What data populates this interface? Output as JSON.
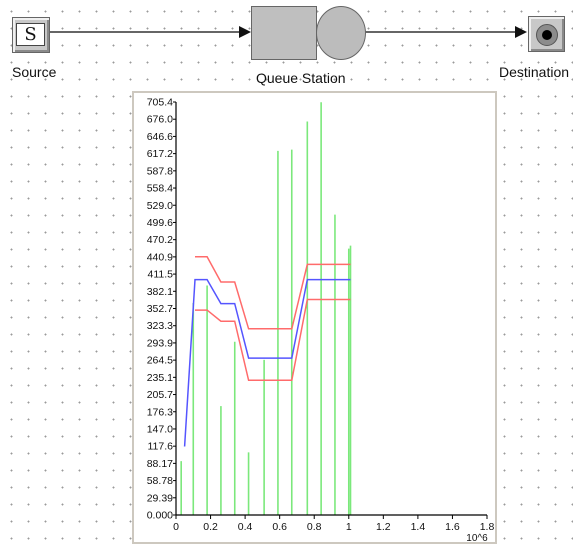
{
  "nodes": {
    "source": {
      "label": "Source",
      "glyph": "S"
    },
    "queue": {
      "label": "Queue Station"
    },
    "destination": {
      "label": "Destination"
    }
  },
  "colors": {
    "background": "#ffffff",
    "grid_dots": "#9a9a9a",
    "histogram": "#7be87b",
    "mean": "#5555ff",
    "confidence": "#ff6b6b",
    "axis": "#000000",
    "panel_border": "#cdc8bf"
  },
  "chart_data": {
    "type": "bar",
    "title": "",
    "xlabel": "",
    "ylabel": "",
    "x_multiplier_label": "10^6",
    "xlim": [
      0,
      1.8
    ],
    "ylim": [
      0,
      705.4
    ],
    "x_ticks": [
      "0",
      "0.2",
      "0.4",
      "0.6",
      "0.8",
      "1",
      "1.2",
      "1.4",
      "1.6",
      "1.8"
    ],
    "y_ticks": [
      "0.000",
      "29.39",
      "58.78",
      "88.17",
      "117.6",
      "147.0",
      "176.3",
      "205.7",
      "235.1",
      "264.5",
      "293.9",
      "323.3",
      "352.7",
      "382.1",
      "411.5",
      "440.9",
      "470.2",
      "499.6",
      "529.0",
      "558.4",
      "587.8",
      "617.2",
      "646.6",
      "676.0",
      "705.4"
    ],
    "grid": false,
    "bars": {
      "name": "",
      "x": [
        0.03,
        0.1,
        0.18,
        0.26,
        0.34,
        0.42,
        0.51,
        0.59,
        0.67,
        0.76,
        0.84,
        0.92,
        1.0,
        1.01
      ],
      "values": [
        92,
        362,
        392,
        186,
        296,
        107,
        265,
        622,
        624,
        672,
        705,
        513,
        455,
        460
      ]
    },
    "series": [
      {
        "name": "",
        "x": [
          0.05,
          0.11,
          0.18,
          0.26,
          0.34,
          0.42,
          0.51,
          0.59,
          0.67,
          0.76,
          0.84,
          0.92,
          1.01
        ],
        "values": [
          117,
          402,
          402,
          361,
          361,
          268,
          268,
          268,
          268,
          402,
          402,
          402,
          402
        ]
      },
      {
        "name": "",
        "x": [
          0.11,
          0.18,
          0.26,
          0.34,
          0.42,
          0.51,
          0.59,
          0.67,
          0.76,
          0.84,
          0.92,
          1.01
        ],
        "values": [
          441,
          441,
          398,
          398,
          318,
          318,
          318,
          318,
          428,
          428,
          428,
          428
        ]
      },
      {
        "name": "",
        "x": [
          0.11,
          0.18,
          0.26,
          0.34,
          0.42,
          0.51,
          0.59,
          0.67,
          0.76,
          0.84,
          0.92,
          1.01
        ],
        "values": [
          350,
          350,
          331,
          331,
          230,
          230,
          230,
          230,
          368,
          368,
          368,
          368
        ]
      }
    ]
  }
}
